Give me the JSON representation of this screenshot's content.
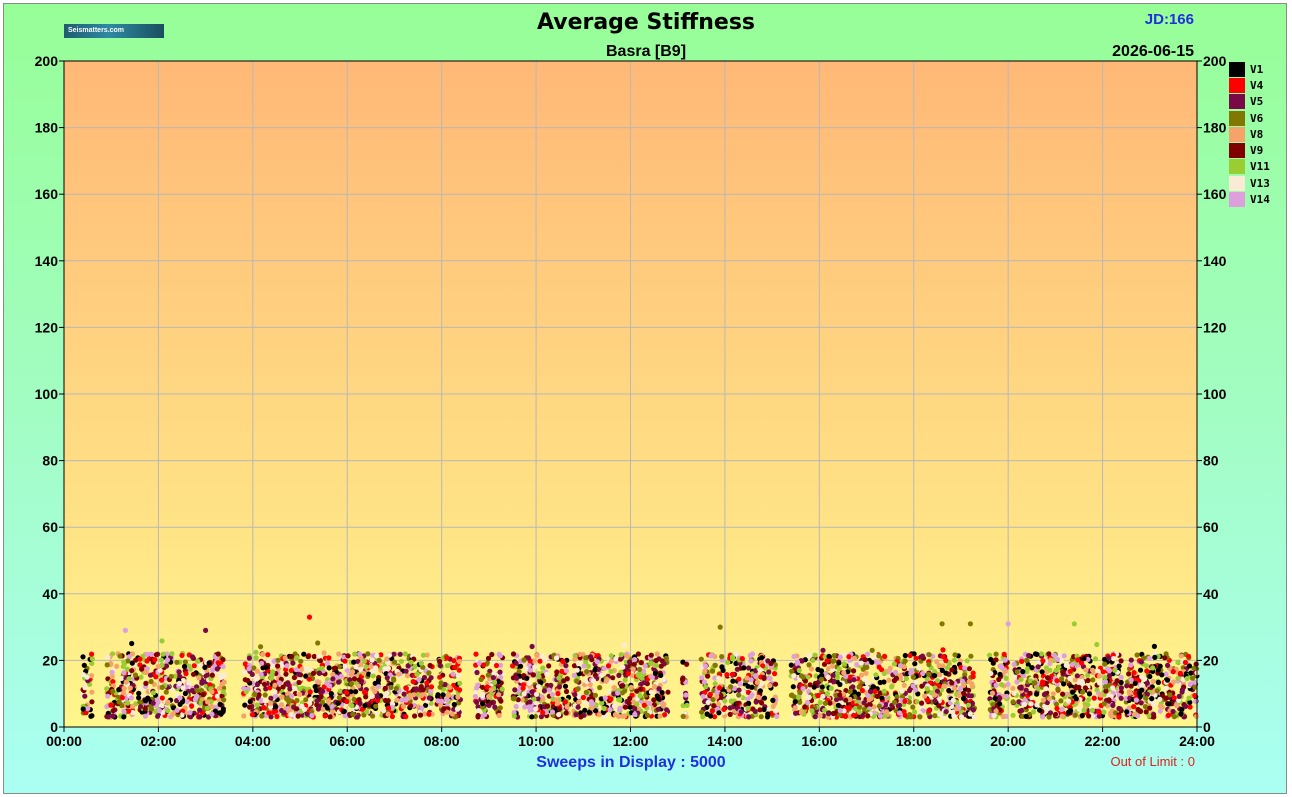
{
  "header": {
    "title": "Average Stiffness",
    "subtitle": "Basra  [B9]",
    "jd": "JD:166",
    "date": "2026-06-15",
    "logo_text": "Seismatters.com"
  },
  "footer": {
    "sweeps": "Sweeps in Display : 5000",
    "out_of_limit": "Out of Limit : 0"
  },
  "colors": {
    "frame_top": "#97fe97",
    "frame_bottom": "#aafff3",
    "plot_top": "#ffb877",
    "plot_bottom": "#fff68c",
    "accent_blue": "#1f2fe0",
    "accent_red": "#e0201a"
  },
  "chart_data": {
    "type": "scatter",
    "title": "Average Stiffness",
    "subtitle": "Basra  [B9]",
    "xlabel": "",
    "ylabel": "",
    "ylim": [
      0,
      200
    ],
    "xlim": [
      0,
      24
    ],
    "x_tick_labels": [
      "00:00",
      "02:00",
      "04:00",
      "06:00",
      "08:00",
      "10:00",
      "12:00",
      "14:00",
      "16:00",
      "18:00",
      "20:00",
      "22:00",
      "24:00"
    ],
    "y_tick_labels": [
      "0",
      "20",
      "40",
      "60",
      "80",
      "100",
      "120",
      "140",
      "160",
      "180",
      "200"
    ],
    "grid": true,
    "legend_position": "right",
    "series": [
      {
        "name": "V1",
        "color": "#000000"
      },
      {
        "name": "V4",
        "color": "#ff0000"
      },
      {
        "name": "V5",
        "color": "#7a0a46"
      },
      {
        "name": "V6",
        "color": "#807800"
      },
      {
        "name": "V8",
        "color": "#f4a46a"
      },
      {
        "name": "V9",
        "color": "#800000"
      },
      {
        "name": "V11",
        "color": "#9acd32"
      },
      {
        "name": "V13",
        "color": "#faebd7"
      },
      {
        "name": "V14",
        "color": "#dda0dd"
      }
    ],
    "active_time_windows_hours": [
      [
        0.4,
        0.6
      ],
      [
        0.9,
        3.4
      ],
      [
        3.8,
        7.8
      ],
      [
        7.9,
        8.4
      ],
      [
        8.7,
        9.3
      ],
      [
        9.5,
        10.7
      ],
      [
        10.8,
        12.8
      ],
      [
        13.1,
        13.2
      ],
      [
        13.5,
        15.1
      ],
      [
        15.4,
        19.3
      ],
      [
        19.6,
        20.0
      ],
      [
        20.1,
        22.4
      ],
      [
        22.5,
        24.0
      ]
    ],
    "typical_value_range": [
      3,
      22
    ],
    "max_value": 33,
    "extreme_points": [
      {
        "x": 5.2,
        "y": 33,
        "series": "V4"
      },
      {
        "x": 21.4,
        "y": 31,
        "series": "V11"
      },
      {
        "x": 18.6,
        "y": 31,
        "series": "V6"
      },
      {
        "x": 19.2,
        "y": 31,
        "series": "V6"
      },
      {
        "x": 13.9,
        "y": 30,
        "series": "V6"
      },
      {
        "x": 1.3,
        "y": 29,
        "series": "V14"
      },
      {
        "x": 3.0,
        "y": 29,
        "series": "V5"
      },
      {
        "x": 20.0,
        "y": 31,
        "series": "V14"
      }
    ]
  }
}
